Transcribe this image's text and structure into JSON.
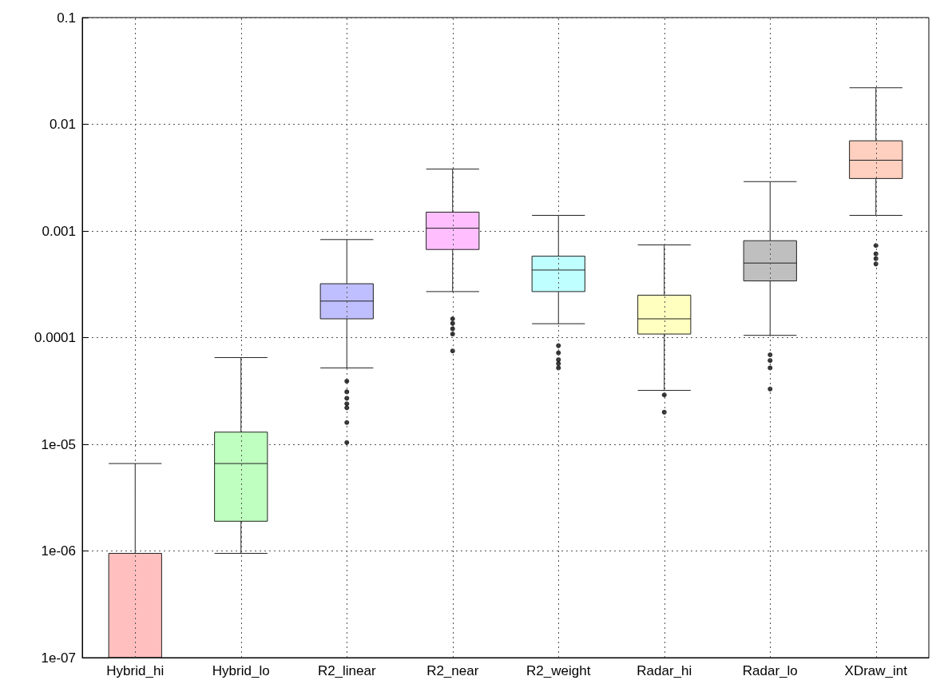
{
  "chart_data": {
    "type": "box",
    "categories": [
      "Hybrid_hi",
      "Hybrid_lo",
      "R2_linear",
      "R2_near",
      "R2_weight",
      "Radar_hi",
      "Radar_lo",
      "XDraw_int"
    ],
    "boxes": [
      {
        "low": 1e-07,
        "q1": 1e-07,
        "median": 1e-07,
        "q3": 9.5e-07,
        "high": 6.6e-06
      },
      {
        "low": 9.5e-07,
        "q1": 1.9e-06,
        "median": 6.6e-06,
        "q3": 1.3e-05,
        "high": 6.5e-05
      },
      {
        "low": 5.2e-05,
        "q1": 0.00015,
        "median": 0.00022,
        "q3": 0.00032,
        "high": 0.00083,
        "outliers": [
          3.9e-05,
          3.1e-05,
          2.7e-05,
          2.4e-05,
          2.2e-05,
          1.6e-05,
          1.04e-05
        ]
      },
      {
        "low": 0.00027,
        "q1": 0.00067,
        "median": 0.00106,
        "q3": 0.0015,
        "high": 0.0038,
        "outliers": [
          0.00015,
          0.000136,
          0.000121,
          0.000108,
          7.5e-05
        ]
      },
      {
        "low": 0.000135,
        "q1": 0.00027,
        "median": 0.00043,
        "q3": 0.00058,
        "high": 0.0014,
        "outliers": [
          8.4e-05,
          7.2e-05,
          6.2e-05,
          5.7e-05,
          5.2e-05
        ]
      },
      {
        "low": 3.2e-05,
        "q1": 0.000108,
        "median": 0.00015,
        "q3": 0.00025,
        "high": 0.00074,
        "outliers": [
          2.9e-05,
          2e-05
        ]
      },
      {
        "low": 0.000105,
        "q1": 0.00034,
        "median": 0.0005,
        "q3": 0.00081,
        "high": 0.0029,
        "outliers": [
          6.9e-05,
          6.1e-05,
          5.2e-05,
          3.3e-05
        ]
      },
      {
        "low": 0.0014,
        "q1": 0.0031,
        "median": 0.0046,
        "q3": 0.007,
        "high": 0.022,
        "outliers": [
          0.00073,
          0.00061,
          0.00055,
          0.00049
        ]
      }
    ],
    "colors": [
      "#ffbfbf",
      "#bfffbf",
      "#bfbfff",
      "#ffbfff",
      "#bfffff",
      "#ffffbf",
      "#bfbfbf",
      "#ffcfbf"
    ],
    "ylim": [
      1e-07,
      0.1
    ],
    "yticks": [
      {
        "value": 1e-07,
        "label": "1e-07"
      },
      {
        "value": 1e-06,
        "label": "1e-06"
      },
      {
        "value": 1e-05,
        "label": "1e-05"
      },
      {
        "value": 0.0001,
        "label": "0.0001"
      },
      0.001,
      0.01,
      0.1
    ],
    "log": true,
    "grid": true
  }
}
